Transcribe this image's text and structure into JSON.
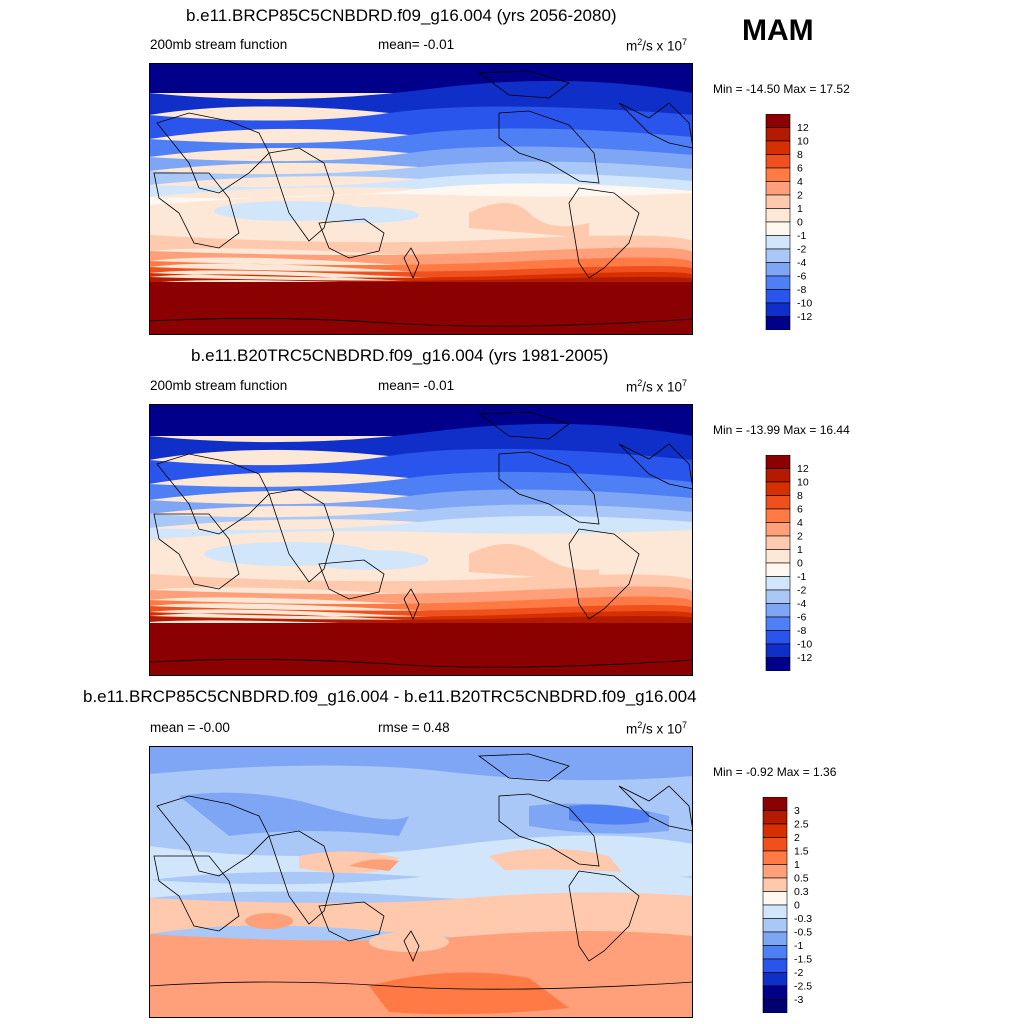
{
  "season": "MAM",
  "panels": [
    {
      "title": "b.e11.BRCP85C5CNBDRD.f09_g16.004 (yrs 2056-2080)",
      "left_text": "200mb stream function",
      "mid_text": "mean=  -0.01",
      "units_main": "m",
      "units_sup1": "2",
      "units_mid": "/s x 10",
      "units_sup2": "7",
      "minmax": "Min = -14.50 Max =  17.52"
    },
    {
      "title": "b.e11.B20TRC5CNBDRD.f09_g16.004 (yrs 1981-2005)",
      "left_text": "200mb stream function",
      "mid_text": "mean=  -0.01",
      "units_main": "m",
      "units_sup1": "2",
      "units_mid": "/s x 10",
      "units_sup2": "7",
      "minmax": "Min = -13.99 Max =  16.44"
    },
    {
      "title": "b.e11.BRCP85C5CNBDRD.f09_g16.004 - b.e11.B20TRC5CNBDRD.f09_g16.004",
      "left_text": "mean =  -0.00",
      "mid_text": "rmse =   0.48",
      "units_main": "m",
      "units_sup1": "2",
      "units_mid": "/s x 10",
      "units_sup2": "7",
      "minmax": "Min =  -0.92 Max =   1.36"
    }
  ],
  "chart_data": [
    {
      "type": "heatmap",
      "variable": "200mb stream function",
      "levels": [
        "12",
        "10",
        "8",
        "6",
        "4",
        "2",
        "1",
        "0",
        "-1",
        "-2",
        "-4",
        "-6",
        "-8",
        "-10",
        "-12"
      ],
      "colors": [
        "#8b0000",
        "#b31a00",
        "#d73000",
        "#f0501e",
        "#ff7a45",
        "#ffa07a",
        "#ffc9ad",
        "#fde7d6",
        "#fff8f0",
        "#d2e6fb",
        "#a9c8f7",
        "#7fa6f5",
        "#4f7ff5",
        "#2a55ec",
        "#0f2fc8",
        "#00008b"
      ],
      "min": -14.5,
      "max": 17.52,
      "mean": -0.01
    },
    {
      "type": "heatmap",
      "variable": "200mb stream function",
      "levels": [
        "12",
        "10",
        "8",
        "6",
        "4",
        "2",
        "1",
        "0",
        "-1",
        "-2",
        "-4",
        "-6",
        "-8",
        "-10",
        "-12"
      ],
      "colors": [
        "#8b0000",
        "#b31a00",
        "#d73000",
        "#f0501e",
        "#ff7a45",
        "#ffa07a",
        "#ffc9ad",
        "#fde7d6",
        "#fff8f0",
        "#d2e6fb",
        "#a9c8f7",
        "#7fa6f5",
        "#4f7ff5",
        "#2a55ec",
        "#0f2fc8",
        "#00008b"
      ],
      "min": -13.99,
      "max": 16.44,
      "mean": -0.01
    },
    {
      "type": "heatmap",
      "variable": "difference",
      "levels": [
        "3",
        "2.5",
        "2",
        "1.5",
        "1",
        "0.5",
        "0.3",
        "0",
        "-0.3",
        "-0.5",
        "-1",
        "-1.5",
        "-2",
        "-2.5",
        "-3"
      ],
      "colors": [
        "#8b0000",
        "#b31a00",
        "#d73000",
        "#f0501e",
        "#ff7a45",
        "#ffa07a",
        "#ffc9ad",
        "#fff8f0",
        "#d2e6fb",
        "#a9c8f7",
        "#7fa6f5",
        "#4f7ff5",
        "#2a55ec",
        "#0f2fc8",
        "#00008b",
        "#000070"
      ],
      "min": -0.92,
      "max": 1.36,
      "mean": -0.0,
      "rmse": 0.48
    }
  ]
}
